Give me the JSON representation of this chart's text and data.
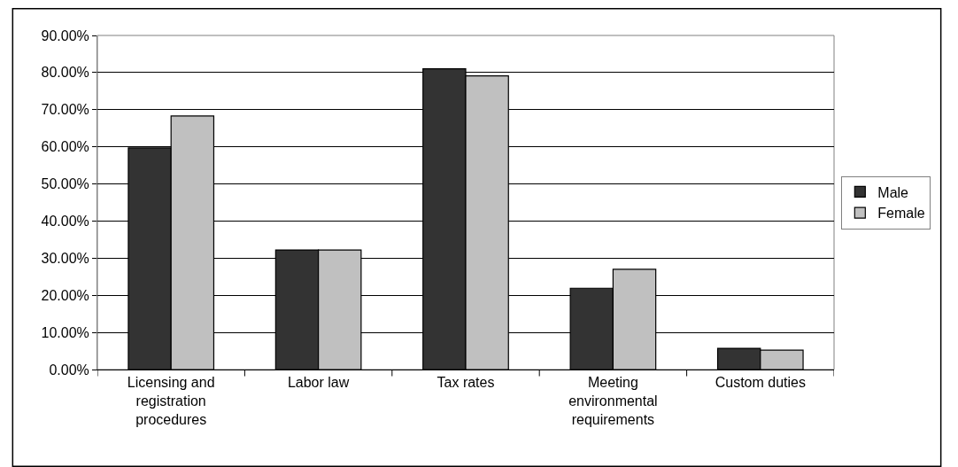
{
  "chart_data": {
    "type": "bar",
    "categories": [
      "Licensing and registration procedures",
      "Labor law",
      "Tax rates",
      "Meeting environmental requirements",
      "Custom duties"
    ],
    "series": [
      {
        "name": "Male",
        "color": "#333333",
        "values": [
          59.7,
          32.2,
          81.0,
          21.9,
          5.7
        ]
      },
      {
        "name": "Female",
        "color": "#c0c0c0",
        "values": [
          68.3,
          32.2,
          79.1,
          27.0,
          5.2
        ]
      }
    ],
    "ylim": [
      0,
      90
    ],
    "yticks": [
      {
        "value": 0,
        "label": "0.00%"
      },
      {
        "value": 10,
        "label": "10.00%"
      },
      {
        "value": 20,
        "label": "20.00%"
      },
      {
        "value": 30,
        "label": "30.00%"
      },
      {
        "value": 40,
        "label": "40.00%"
      },
      {
        "value": 50,
        "label": "50.00%"
      },
      {
        "value": 60,
        "label": "60.00%"
      },
      {
        "value": 70,
        "label": "70.00%"
      },
      {
        "value": 80,
        "label": "80.00%"
      },
      {
        "value": 90,
        "label": "90.00%"
      }
    ],
    "grid": "y",
    "legend": "right"
  }
}
